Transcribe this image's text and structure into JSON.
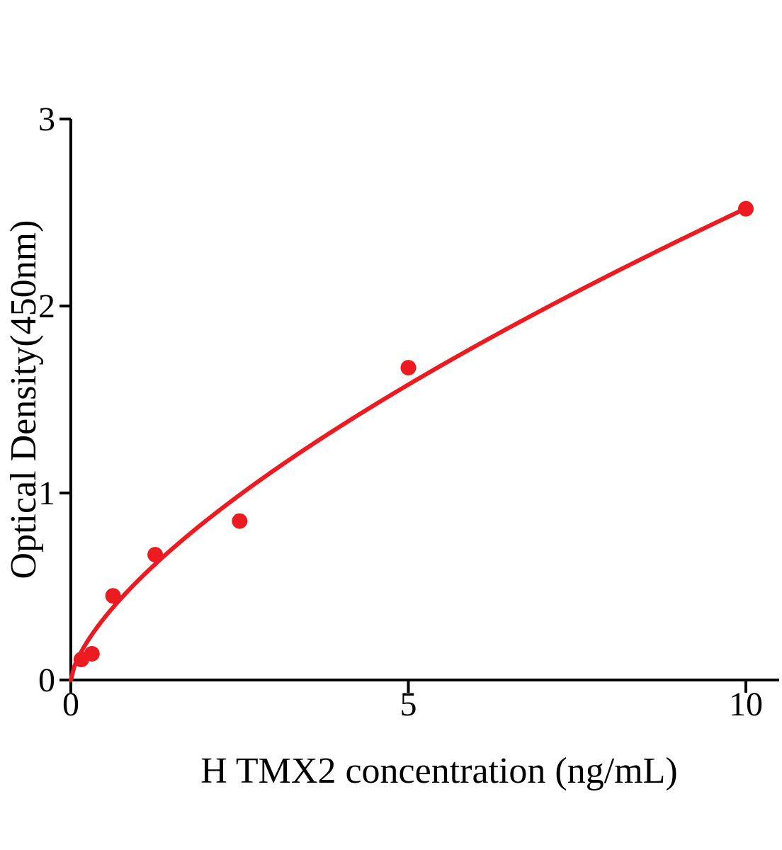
{
  "figure": {
    "background_color": "#FFFFFF"
  },
  "chart_data": {
    "type": "scatter",
    "xlabel": "H TMX2 concentration (ng/mL)",
    "ylabel": "Optical Density(450nm)",
    "x": [
      0.156,
      0.3125,
      0.625,
      1.25,
      2.5,
      5,
      10
    ],
    "y": [
      0.11,
      0.14,
      0.45,
      0.67,
      0.85,
      1.67,
      2.52
    ],
    "xticks": [
      0,
      5,
      10
    ],
    "yticks": [
      0,
      1,
      2,
      3
    ],
    "xlim": [
      0,
      10.5
    ],
    "ylim": [
      0,
      3
    ],
    "grid": false,
    "legend": "none",
    "marker": "circle",
    "trend_curve": {
      "type": "power",
      "a": 0.533,
      "b": 0.675,
      "x_range": [
        0,
        10
      ]
    },
    "colors": {
      "points": "#EC1B21",
      "curve": "#EC1B21",
      "axis": "#000000",
      "text": "#000000"
    }
  }
}
